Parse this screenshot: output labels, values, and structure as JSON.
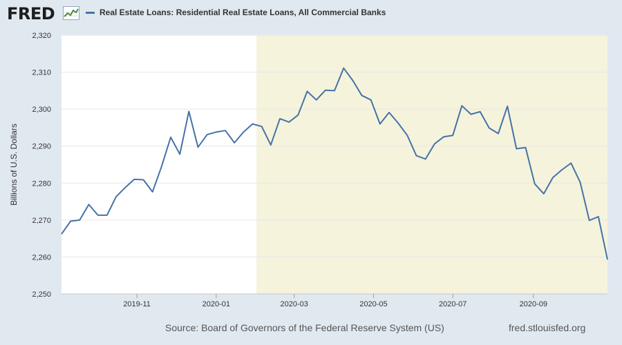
{
  "header": {
    "logo_text": "FRED",
    "logo_icon": "line-chart-icon",
    "series_color": "#4572a7"
  },
  "footer": {
    "source": "Source: Board of Governors of the Federal Reserve System (US)",
    "site": "fred.stlouisfed.org"
  },
  "chart_data": {
    "type": "line",
    "title": "",
    "xlabel": "",
    "ylabel": "Billions of U.S. Dollars",
    "ylim": [
      2250,
      2320
    ],
    "xlim": [
      "2019-09-04",
      "2020-10-28"
    ],
    "grid": true,
    "legend": "top-left",
    "recession_shading": {
      "start": "2020-02-01",
      "end": "2020-10-28",
      "color": "#f5f3dc"
    },
    "y_ticks": [
      2250,
      2260,
      2270,
      2280,
      2290,
      2300,
      2310,
      2320
    ],
    "y_tick_labels": [
      "2,250",
      "2,260",
      "2,270",
      "2,280",
      "2,290",
      "2,300",
      "2,310",
      "2,320"
    ],
    "x_ticks": [
      {
        "date": "2019-11-01",
        "label": "2019-11"
      },
      {
        "date": "2020-01-01",
        "label": "2020-01"
      },
      {
        "date": "2020-03-01",
        "label": "2020-03"
      },
      {
        "date": "2020-05-01",
        "label": "2020-05"
      },
      {
        "date": "2020-07-01",
        "label": "2020-07"
      },
      {
        "date": "2020-09-01",
        "label": "2020-09"
      }
    ],
    "series": [
      {
        "name": "Real Estate Loans: Residential Real Estate Loans, All Commercial Banks",
        "color": "#4572a7",
        "x": [
          "2019-09-04",
          "2019-09-11",
          "2019-09-18",
          "2019-09-25",
          "2019-10-02",
          "2019-10-09",
          "2019-10-16",
          "2019-10-23",
          "2019-10-30",
          "2019-11-06",
          "2019-11-13",
          "2019-11-20",
          "2019-11-27",
          "2019-12-04",
          "2019-12-11",
          "2019-12-18",
          "2019-12-25",
          "2020-01-01",
          "2020-01-08",
          "2020-01-15",
          "2020-01-22",
          "2020-01-29",
          "2020-02-05",
          "2020-02-12",
          "2020-02-19",
          "2020-02-26",
          "2020-03-04",
          "2020-03-11",
          "2020-03-18",
          "2020-03-25",
          "2020-04-01",
          "2020-04-08",
          "2020-04-15",
          "2020-04-22",
          "2020-04-29",
          "2020-05-06",
          "2020-05-13",
          "2020-05-20",
          "2020-05-27",
          "2020-06-03",
          "2020-06-10",
          "2020-06-17",
          "2020-06-24",
          "2020-07-01",
          "2020-07-08",
          "2020-07-15",
          "2020-07-22",
          "2020-07-29",
          "2020-08-05",
          "2020-08-12",
          "2020-08-19",
          "2020-08-26",
          "2020-09-02",
          "2020-09-09",
          "2020-09-16",
          "2020-09-23",
          "2020-09-30",
          "2020-10-07",
          "2020-10-14",
          "2020-10-21",
          "2020-10-28"
        ],
        "values": [
          2266.2,
          2269.7,
          2270.0,
          2274.2,
          2271.3,
          2271.3,
          2276.3,
          2278.8,
          2281.0,
          2280.9,
          2277.6,
          2284.5,
          2292.4,
          2287.8,
          2299.4,
          2289.7,
          2293.1,
          2293.8,
          2294.2,
          2290.9,
          2293.8,
          2296.0,
          2295.3,
          2290.3,
          2297.4,
          2296.5,
          2298.4,
          2304.8,
          2302.5,
          2305.1,
          2305.0,
          2311.1,
          2307.8,
          2303.7,
          2302.5,
          2296.0,
          2299.1,
          2296.2,
          2292.9,
          2287.4,
          2286.5,
          2290.6,
          2292.5,
          2292.9,
          2300.9,
          2298.6,
          2299.3,
          2294.9,
          2293.4,
          2300.8,
          2289.3,
          2289.6,
          2279.8,
          2277.1,
          2281.5,
          2283.6,
          2285.4,
          2280.2,
          2269.9,
          2270.9,
          2259.3
        ]
      }
    ]
  }
}
